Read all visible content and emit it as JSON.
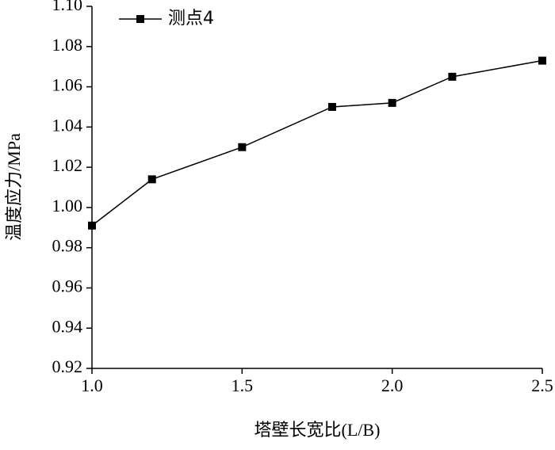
{
  "chart_data": {
    "type": "line",
    "x_label": "塔壁长宽比(L/B)",
    "y_label": "温度应力/MPa",
    "x": [
      1.0,
      1.2,
      1.5,
      1.8,
      2.0,
      2.2,
      2.5
    ],
    "series": [
      {
        "name": "测点4",
        "color": "#000000",
        "values": [
          0.991,
          1.014,
          1.03,
          1.05,
          1.052,
          1.065,
          1.073
        ]
      }
    ],
    "xlim": [
      1.0,
      2.5
    ],
    "xticks": [
      {
        "value": 1.0,
        "label": "1.0"
      },
      {
        "value": 1.5,
        "label": "1.5"
      },
      {
        "value": 2.0,
        "label": "2.0"
      },
      {
        "value": 2.5,
        "label": "2.5"
      }
    ],
    "ylim": [
      0.92,
      1.1
    ],
    "yticks": [
      {
        "value": 0.92,
        "label": "0.92"
      },
      {
        "value": 0.94,
        "label": "0.94"
      },
      {
        "value": 0.96,
        "label": "0.96"
      },
      {
        "value": 0.98,
        "label": "0.98"
      },
      {
        "value": 1.0,
        "label": "1.00"
      },
      {
        "value": 1.02,
        "label": "1.02"
      },
      {
        "value": 1.04,
        "label": "1.04"
      },
      {
        "value": 1.06,
        "label": "1.06"
      },
      {
        "value": 1.08,
        "label": "1.08"
      },
      {
        "value": 1.1,
        "label": "1.10"
      }
    ],
    "legend": "upper-left"
  }
}
